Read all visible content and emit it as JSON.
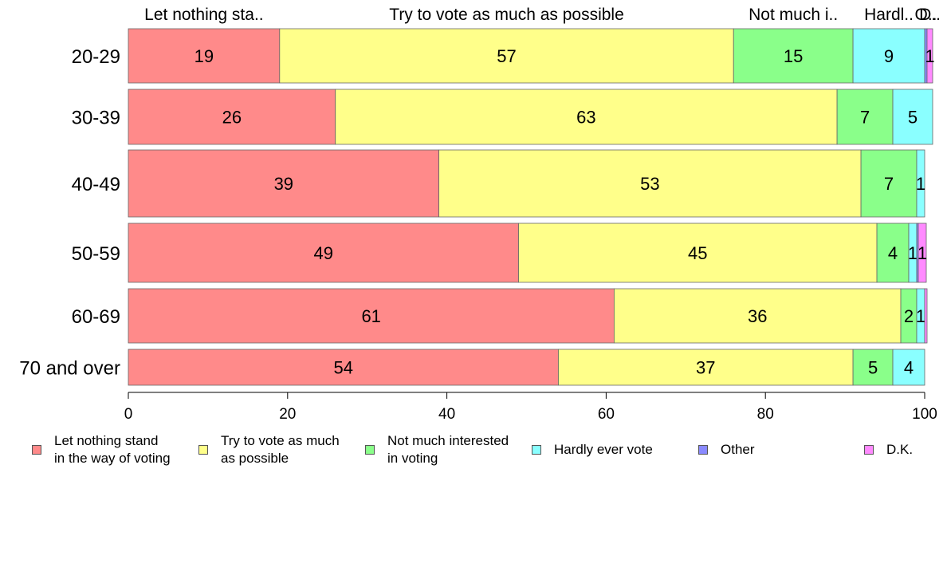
{
  "chart_data": {
    "type": "bar",
    "orientation": "horizontal",
    "stacked": true,
    "categories": [
      "20-29",
      "30-39",
      "40-49",
      "50-59",
      "60-69",
      "70 and over"
    ],
    "series": [
      {
        "name": "Let nothing stand\nin the way of voting",
        "top_label": "Let nothing sta..",
        "color": "#ff8a8a",
        "values": [
          19,
          26,
          39,
          49,
          61,
          54
        ]
      },
      {
        "name": "Try to vote as much\nas possible",
        "top_label": "Try to vote as much as possible",
        "color": "#ffff8a",
        "values": [
          57,
          63,
          53,
          45,
          36,
          37
        ]
      },
      {
        "name": "Not much interested\nin voting",
        "top_label": "Not much i..",
        "color": "#8aff8a",
        "values": [
          15,
          7,
          7,
          4,
          2,
          5
        ]
      },
      {
        "name": "Hardly ever vote",
        "top_label": "Hardl..",
        "color": "#8affff",
        "values": [
          9,
          5,
          1,
          1,
          1,
          4
        ]
      },
      {
        "name": "Other",
        "top_label": "O..",
        "color": "#8a8aff",
        "values": [
          0.3,
          0,
          0,
          0.2,
          0,
          0
        ]
      },
      {
        "name": "D.K.",
        "top_label": "D..",
        "color": "#ff8aff",
        "values": [
          0.7,
          0,
          0,
          1,
          0.3,
          0
        ]
      }
    ],
    "data_labels": [
      [
        "19",
        "57",
        "15",
        "9",
        "",
        "1"
      ],
      [
        "26",
        "63",
        "7",
        "5",
        "",
        ""
      ],
      [
        "39",
        "53",
        "7",
        "1",
        "",
        ""
      ],
      [
        "49",
        "45",
        "4",
        "1",
        "",
        "1"
      ],
      [
        "61",
        "36",
        "2",
        "1",
        "",
        ""
      ],
      [
        "54",
        "37",
        "5",
        "4",
        "",
        ""
      ]
    ],
    "xlim": [
      0,
      100
    ],
    "xticks": [
      "0",
      "20",
      "40",
      "60",
      "80",
      "100"
    ],
    "grid": false,
    "legend_position": "bottom"
  }
}
